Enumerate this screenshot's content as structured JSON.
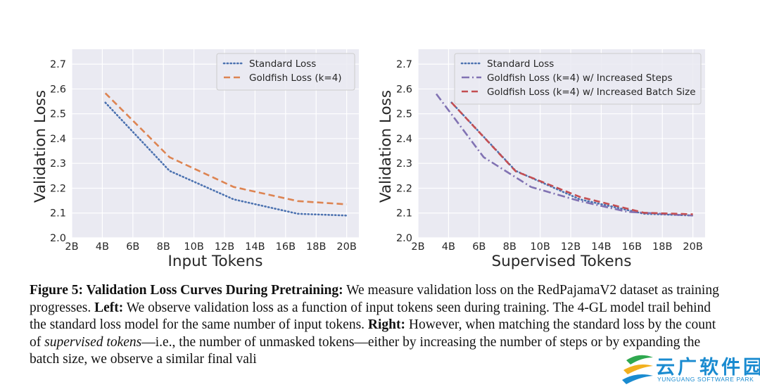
{
  "chart_data": [
    {
      "type": "line",
      "xlabel": "Input Tokens",
      "ylabel": "Validation Loss",
      "xlim": [
        2,
        20.8
      ],
      "ylim": [
        2.0,
        2.76
      ],
      "xticks": [
        2,
        4,
        6,
        8,
        10,
        12,
        14,
        16,
        18,
        20
      ],
      "xtick_labels": [
        "2B",
        "4B",
        "6B",
        "8B",
        "10B",
        "12B",
        "14B",
        "16B",
        "18B",
        "20B"
      ],
      "yticks": [
        2.0,
        2.1,
        2.2,
        2.3,
        2.4,
        2.5,
        2.6,
        2.7
      ],
      "ytick_labels": [
        "2.0",
        "2.1",
        "2.2",
        "2.3",
        "2.4",
        "2.5",
        "2.6",
        "2.7"
      ],
      "grid": true,
      "legend": "top-right",
      "series": [
        {
          "name": "Standard Loss",
          "color": "#4c72b0",
          "dash": "dot",
          "x": [
            4.2,
            8.4,
            12.6,
            16.8,
            20.0
          ],
          "y": [
            2.545,
            2.27,
            2.155,
            2.097,
            2.09
          ]
        },
        {
          "name": "Goldfish Loss (k=4)",
          "color": "#dd8452",
          "dash": "dash",
          "x": [
            4.2,
            8.4,
            12.6,
            16.8,
            20.0
          ],
          "y": [
            2.583,
            2.325,
            2.205,
            2.148,
            2.135
          ]
        }
      ]
    },
    {
      "type": "line",
      "xlabel": "Supervised Tokens",
      "ylabel": "Validation Loss",
      "xlim": [
        2,
        20.8
      ],
      "ylim": [
        2.0,
        2.76
      ],
      "xticks": [
        2,
        4,
        6,
        8,
        10,
        12,
        14,
        16,
        18,
        20
      ],
      "xtick_labels": [
        "2B",
        "4B",
        "6B",
        "8B",
        "10B",
        "12B",
        "14B",
        "16B",
        "18B",
        "20B"
      ],
      "yticks": [
        2.0,
        2.1,
        2.2,
        2.3,
        2.4,
        2.5,
        2.6,
        2.7
      ],
      "ytick_labels": [
        "2.0",
        "2.1",
        "2.2",
        "2.3",
        "2.4",
        "2.5",
        "2.6",
        "2.7"
      ],
      "grid": true,
      "legend": "top-right",
      "series": [
        {
          "name": "Standard Loss",
          "color": "#4c72b0",
          "dash": "dot",
          "x": [
            4.2,
            8.4,
            12.6,
            16.8,
            20.0
          ],
          "y": [
            2.545,
            2.27,
            2.155,
            2.097,
            2.09
          ]
        },
        {
          "name": "Goldfish Loss (k=4) w/ Increased Steps",
          "color": "#8172b3",
          "dash": "dashdot",
          "x": [
            3.2,
            6.3,
            9.4,
            12.6,
            15.7,
            18.9,
            20.0
          ],
          "y": [
            2.58,
            2.325,
            2.205,
            2.148,
            2.105,
            2.093,
            2.09
          ]
        },
        {
          "name": "Goldfish Loss (k=4) w/ Increased Batch Size",
          "color": "#c44e52",
          "dash": "dash",
          "x": [
            4.2,
            8.4,
            12.6,
            16.8,
            20.0
          ],
          "y": [
            2.545,
            2.268,
            2.165,
            2.101,
            2.095
          ]
        }
      ]
    }
  ],
  "caption": {
    "label": "Figure 5: Validation Loss Curves During Pretraining:",
    "text1": " We measure validation loss on the RedPajamaV2 dataset as training progresses. ",
    "left_label": "Left:",
    "text2": " We observe validation loss as a function of input tokens seen during training. The 4-GL model trail behind the standard loss model for the same number of input tokens. ",
    "right_label": "Right:",
    "text3": " However, when matching the standard loss by the count of ",
    "emph": "supervised tokens",
    "text4": "—i.e., the number of unmasked tokens—either by increasing the number of steps or by expanding the batch size, we observe a similar final vali"
  },
  "watermark": {
    "name": "云广软件园",
    "sub": "YUNGUANG SOFTWARE PARK",
    "colors": [
      "#2fa84f",
      "#f2b01e",
      "#1a8bd0"
    ]
  }
}
